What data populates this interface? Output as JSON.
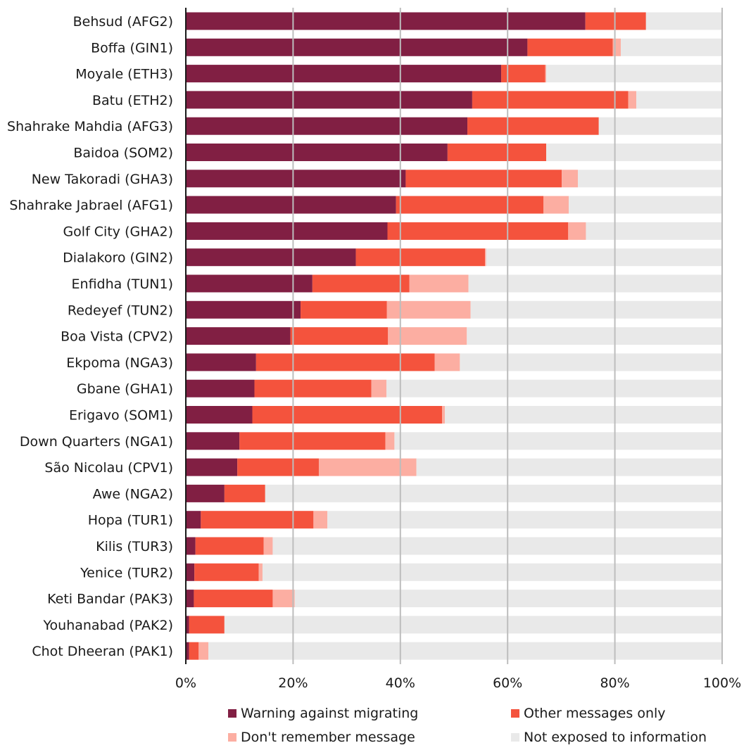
{
  "chart_data": {
    "type": "bar",
    "orientation": "horizontal",
    "stacked": true,
    "xlim": [
      0,
      100
    ],
    "x_ticks": [
      "0%",
      "20%",
      "40%",
      "60%",
      "80%",
      "100%"
    ],
    "grid": true,
    "legend_position": "bottom",
    "categories": [
      "Behsud (AFG2)",
      "Boffa (GIN1)",
      "Moyale (ETH3)",
      "Batu (ETH2)",
      "Shahrake Mahdia (AFG3)",
      "Baidoa (SOM2)",
      "New Takoradi (GHA3)",
      "Shahrake Jabrael (AFG1)",
      "Golf City (GHA2)",
      "Dialakoro (GIN2)",
      "Enfidha (TUN1)",
      "Redeyef (TUN2)",
      "Boa Vista (CPV2)",
      "Ekpoma (NGA3)",
      "Gbane (GHA1)",
      "Erigavo (SOM1)",
      "Down Quarters (NGA1)",
      "São Nicolau (CPV1)",
      "Awe (NGA2)",
      "Hopa (TUR1)",
      "Kilis (TUR3)",
      "Yenice (TUR2)",
      "Keti Bandar (PAK3)",
      "Youhanabad (PAK2)",
      "Chot Dheeran (PAK1)"
    ],
    "series": [
      {
        "name": "Warning against migrating",
        "color": "#811f43",
        "values": [
          74.5,
          63.7,
          58.8,
          53.4,
          52.5,
          48.8,
          41.0,
          39.2,
          37.6,
          31.7,
          23.6,
          21.4,
          19.5,
          13.1,
          12.8,
          12.4,
          10.0,
          9.6,
          7.2,
          2.8,
          1.8,
          1.6,
          1.5,
          0.6,
          0.6
        ]
      },
      {
        "name": "Other messages only",
        "color": "#f4533d",
        "values": [
          11.3,
          15.9,
          8.2,
          29.1,
          24.5,
          18.4,
          29.1,
          27.5,
          33.7,
          24.1,
          18.1,
          16.1,
          18.2,
          33.3,
          21.8,
          35.4,
          27.2,
          15.2,
          7.6,
          21.0,
          12.7,
          12.0,
          14.7,
          6.6,
          1.8
        ]
      },
      {
        "name": "Don't remember message",
        "color": "#fcaea2",
        "values": [
          0,
          1.5,
          0.2,
          1.5,
          0,
          0,
          3.0,
          4.7,
          3.3,
          0.2,
          11.0,
          15.6,
          14.7,
          4.7,
          2.8,
          0.5,
          1.7,
          18.2,
          0,
          2.6,
          1.7,
          0.7,
          4.1,
          0,
          1.8
        ]
      },
      {
        "name": "Not exposed to information",
        "color": "#e9e9e9",
        "values": [
          14.2,
          18.9,
          32.8,
          16.0,
          23.0,
          32.8,
          26.9,
          28.6,
          25.4,
          44.0,
          47.3,
          46.9,
          47.6,
          48.9,
          62.6,
          51.7,
          61.1,
          57.0,
          85.2,
          73.6,
          83.8,
          85.7,
          79.7,
          92.8,
          95.8
        ]
      }
    ]
  },
  "legend": {
    "items": [
      {
        "label": "Warning against migrating",
        "color": "#811f43"
      },
      {
        "label": "Other messages only",
        "color": "#f4533d"
      },
      {
        "label": "Don't remember message",
        "color": "#fcaea2"
      },
      {
        "label": "Not exposed to information",
        "color": "#e9e9e9"
      }
    ]
  }
}
